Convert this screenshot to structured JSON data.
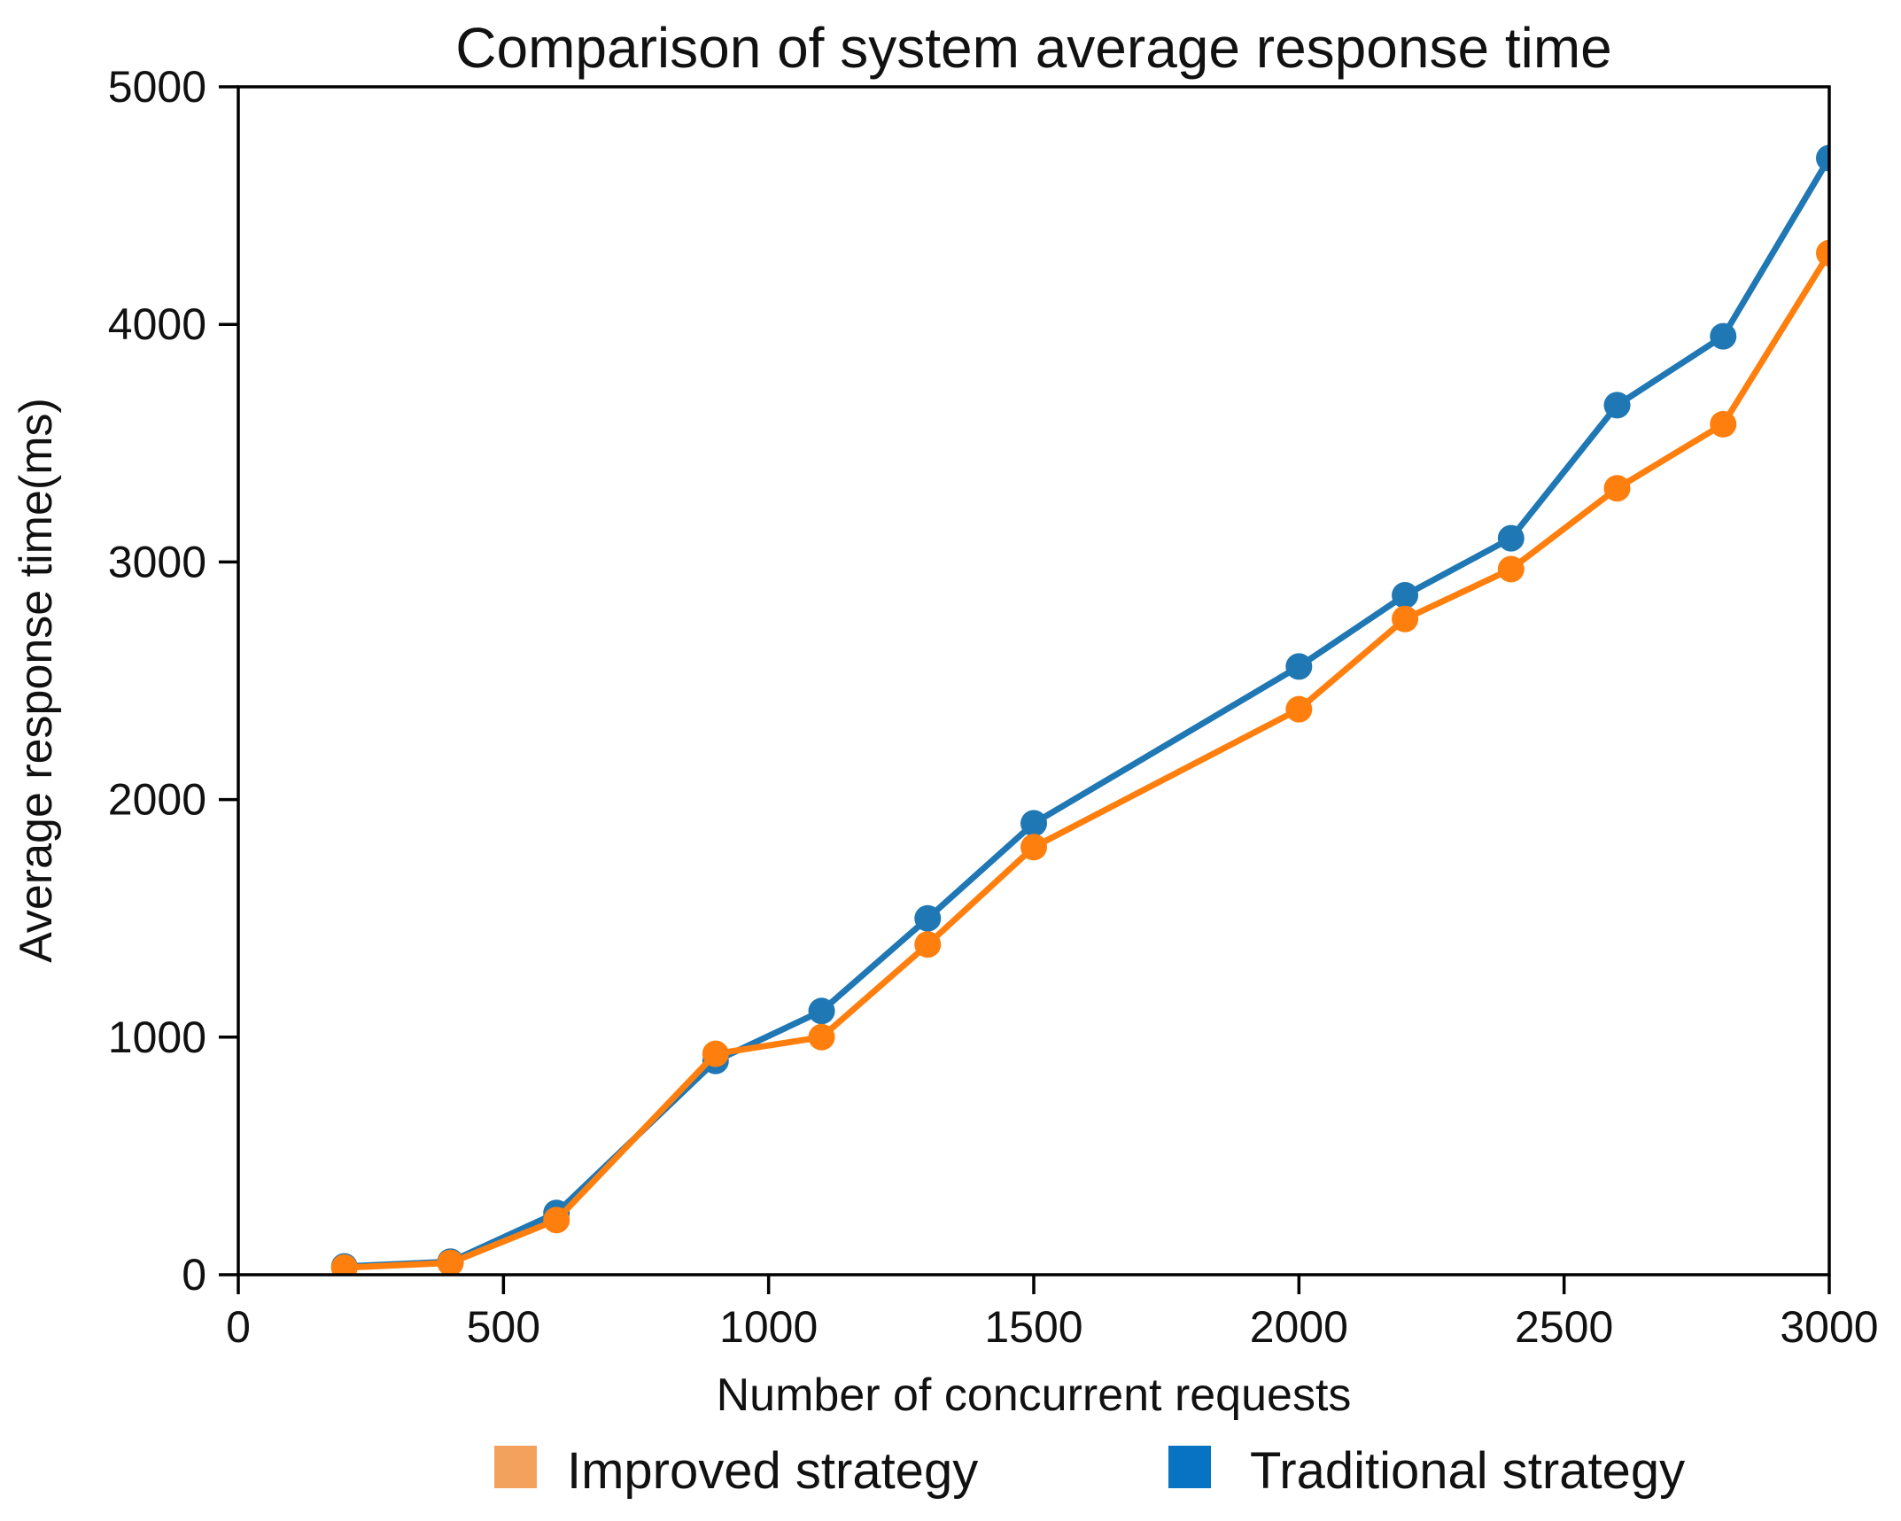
{
  "chart_data": {
    "type": "line",
    "title": "Comparison of system average response time",
    "xlabel": "Number of concurrent requests",
    "ylabel": "Average response time(ms)",
    "xlim": [
      0,
      3000
    ],
    "ylim": [
      0,
      5000
    ],
    "xticks": [
      0,
      500,
      1000,
      1500,
      2000,
      2500,
      3000
    ],
    "yticks": [
      0,
      1000,
      2000,
      3000,
      4000,
      5000
    ],
    "grid": false,
    "legend_position": "bottom-outside",
    "axis_color": "#000000",
    "x": [
      200,
      400,
      600,
      900,
      1100,
      1300,
      1500,
      2000,
      2200,
      2400,
      2600,
      2800,
      3000
    ],
    "series": [
      {
        "name": "Improved strategy",
        "color": "#ff7f0e",
        "legend_swatch": "#f4a15d",
        "values": [
          30,
          50,
          230,
          930,
          1000,
          1390,
          1800,
          2380,
          2760,
          2970,
          3310,
          3580,
          4300
        ]
      },
      {
        "name": "Traditional strategy",
        "color": "#1f77b4",
        "legend_swatch": "#0773c2",
        "values": [
          35,
          55,
          260,
          900,
          1110,
          1500,
          1900,
          2560,
          2860,
          3100,
          3660,
          3950,
          4700
        ]
      }
    ]
  }
}
